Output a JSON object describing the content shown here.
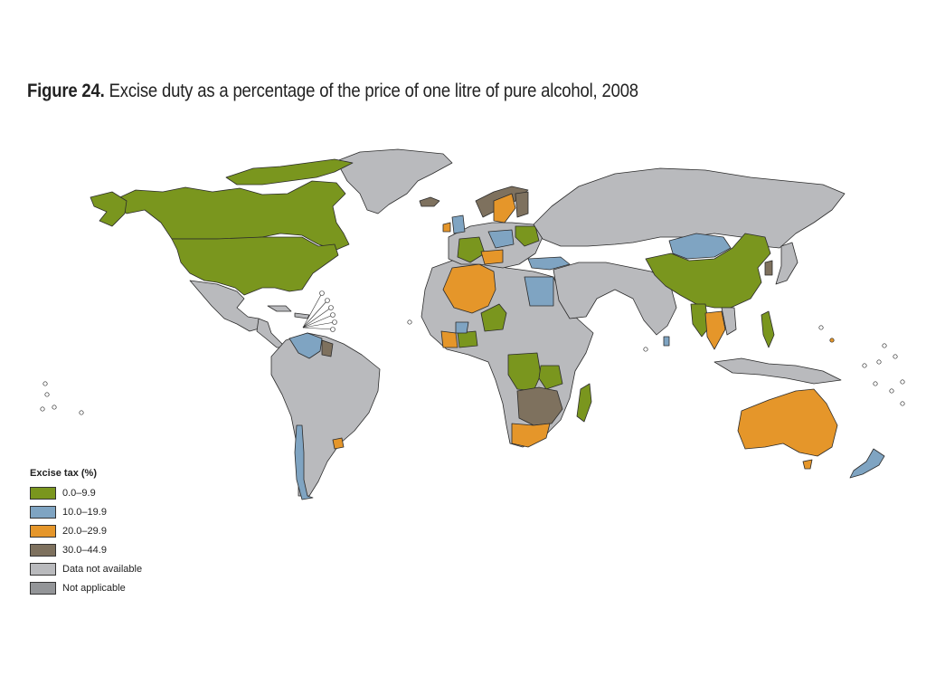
{
  "figure": {
    "label": "Figure 24.",
    "caption": "Excise duty as a percentage of the price of one litre of pure alcohol, 2008"
  },
  "legend": {
    "title": "Excise tax (%)",
    "items": [
      {
        "label": "0.0–9.9",
        "color": "#7a961e"
      },
      {
        "label": "10.0–19.9",
        "color": "#7fa4c2"
      },
      {
        "label": "20.0–29.9",
        "color": "#e5962a"
      },
      {
        "label": "30.0–44.9",
        "color": "#7e715e"
      },
      {
        "label": "Data not available",
        "color": "#b9babd"
      },
      {
        "label": "Not applicable",
        "color": "#939598"
      }
    ]
  },
  "colors": {
    "green": "#7a961e",
    "blue": "#7fa4c2",
    "orange": "#e5962a",
    "brown": "#7e715e",
    "na": "#b9babd",
    "notapplicable": "#939598",
    "border": "#2b2b2b"
  }
}
